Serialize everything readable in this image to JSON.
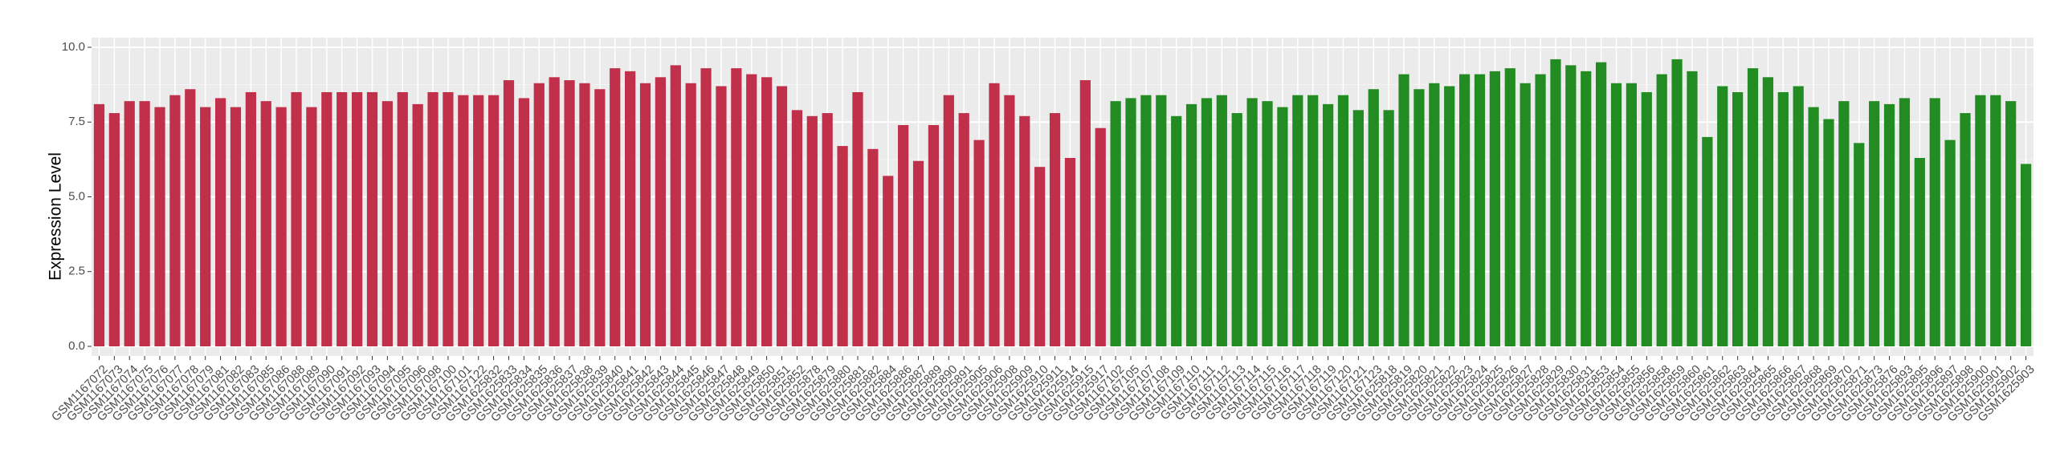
{
  "chart_data": {
    "type": "bar",
    "y_label": "Expression Level",
    "categories": [
      "GSM1167072",
      "GSM1167073",
      "GSM1167074",
      "GSM1167075",
      "GSM1167076",
      "GSM1167077",
      "GSM1167078",
      "GSM1167079",
      "GSM1167081",
      "GSM1167082",
      "GSM1167083",
      "GSM1167085",
      "GSM1167086",
      "GSM1167088",
      "GSM1167089",
      "GSM1167090",
      "GSM1167091",
      "GSM1167092",
      "GSM1167093",
      "GSM1167094",
      "GSM1167095",
      "GSM1167096",
      "GSM1167098",
      "GSM1167100",
      "GSM1167101",
      "GSM1167122",
      "GSM1625832",
      "GSM1625833",
      "GSM1625834",
      "GSM1625835",
      "GSM1625836",
      "GSM1625837",
      "GSM1625838",
      "GSM1625839",
      "GSM1625840",
      "GSM1625841",
      "GSM1625842",
      "GSM1625843",
      "GSM1625844",
      "GSM1625845",
      "GSM1625846",
      "GSM1625847",
      "GSM1625848",
      "GSM1625849",
      "GSM1625850",
      "GSM1625851",
      "GSM1625852",
      "GSM1625878",
      "GSM1625879",
      "GSM1625880",
      "GSM1625881",
      "GSM1625882",
      "GSM1625884",
      "GSM1625886",
      "GSM1625887",
      "GSM1625889",
      "GSM1625890",
      "GSM1625891",
      "GSM1625905",
      "GSM1625906",
      "GSM1625908",
      "GSM1625909",
      "GSM1625910",
      "GSM1625911",
      "GSM1625914",
      "GSM1625915",
      "GSM1625917",
      "GSM1167102",
      "GSM1167105",
      "GSM1167107",
      "GSM1167108",
      "GSM1167109",
      "GSM1167110",
      "GSM1167111",
      "GSM1167112",
      "GSM1167113",
      "GSM1167114",
      "GSM1167115",
      "GSM1167116",
      "GSM1167117",
      "GSM1167118",
      "GSM1167119",
      "GSM1167120",
      "GSM1167121",
      "GSM1167123",
      "GSM1625818",
      "GSM1625819",
      "GSM1625820",
      "GSM1625821",
      "GSM1625822",
      "GSM1625823",
      "GSM1625824",
      "GSM1625825",
      "GSM1625826",
      "GSM1625827",
      "GSM1625828",
      "GSM1625829",
      "GSM1625830",
      "GSM1625831",
      "GSM1625853",
      "GSM1625854",
      "GSM1625855",
      "GSM1625856",
      "GSM1625858",
      "GSM1625859",
      "GSM1625860",
      "GSM1625861",
      "GSM1625862",
      "GSM1625863",
      "GSM1625864",
      "GSM1625865",
      "GSM1625866",
      "GSM1625867",
      "GSM1625868",
      "GSM1625869",
      "GSM1625870",
      "GSM1625871",
      "GSM1625873",
      "GSM1625876",
      "GSM1625893",
      "GSM1625895",
      "GSM1625896",
      "GSM1625897",
      "GSM1625898",
      "GSM1625900",
      "GSM1625901",
      "GSM1625902",
      "GSM1625903"
    ],
    "values": [
      8.1,
      7.8,
      8.2,
      8.2,
      8.0,
      8.4,
      8.6,
      8.0,
      8.3,
      8.0,
      8.5,
      8.2,
      8.0,
      8.5,
      8.0,
      8.5,
      8.5,
      8.5,
      8.5,
      8.2,
      8.5,
      8.1,
      8.5,
      8.5,
      8.4,
      8.4,
      8.4,
      8.9,
      8.3,
      8.8,
      9.0,
      8.9,
      8.8,
      8.6,
      9.3,
      9.2,
      8.8,
      9.0,
      9.4,
      8.8,
      9.3,
      8.7,
      9.3,
      9.1,
      9.0,
      8.7,
      7.9,
      7.7,
      7.8,
      6.7,
      8.5,
      6.6,
      5.7,
      7.4,
      6.2,
      7.4,
      8.4,
      7.8,
      6.9,
      8.8,
      8.4,
      7.7,
      6.0,
      7.8,
      6.3,
      8.9,
      7.3,
      8.2,
      8.3,
      8.4,
      8.4,
      7.7,
      8.1,
      8.3,
      8.4,
      7.8,
      8.3,
      8.2,
      8.0,
      8.4,
      8.4,
      8.1,
      8.4,
      7.9,
      8.6,
      7.9,
      9.1,
      8.6,
      8.8,
      8.7,
      9.1,
      9.1,
      9.2,
      9.3,
      8.8,
      9.1,
      9.6,
      9.4,
      9.2,
      9.5,
      8.8,
      8.8,
      8.5,
      9.1,
      9.6,
      9.2,
      7.0,
      8.7,
      8.5,
      9.3,
      9.0,
      8.5,
      8.7,
      8.0,
      7.6,
      8.2,
      6.8,
      8.2,
      8.1,
      8.3,
      6.3,
      8.3,
      6.9,
      7.8,
      8.4,
      8.4,
      8.2,
      6.1
    ],
    "colors": [
      "#c0304a",
      "#c0304a",
      "#c0304a",
      "#c0304a",
      "#c0304a",
      "#c0304a",
      "#c0304a",
      "#c0304a",
      "#c0304a",
      "#c0304a",
      "#c0304a",
      "#c0304a",
      "#c0304a",
      "#c0304a",
      "#c0304a",
      "#c0304a",
      "#c0304a",
      "#c0304a",
      "#c0304a",
      "#c0304a",
      "#c0304a",
      "#c0304a",
      "#c0304a",
      "#c0304a",
      "#c0304a",
      "#c0304a",
      "#c0304a",
      "#c0304a",
      "#c0304a",
      "#c0304a",
      "#c0304a",
      "#c0304a",
      "#c0304a",
      "#c0304a",
      "#c0304a",
      "#c0304a",
      "#c0304a",
      "#c0304a",
      "#c0304a",
      "#c0304a",
      "#c0304a",
      "#c0304a",
      "#c0304a",
      "#c0304a",
      "#c0304a",
      "#c0304a",
      "#c0304a",
      "#c0304a",
      "#c0304a",
      "#c0304a",
      "#c0304a",
      "#c0304a",
      "#c0304a",
      "#c0304a",
      "#c0304a",
      "#c0304a",
      "#c0304a",
      "#c0304a",
      "#c0304a",
      "#c0304a",
      "#c0304a",
      "#c0304a",
      "#c0304a",
      "#c0304a",
      "#c0304a",
      "#c0304a",
      "#c0304a",
      "#228b22",
      "#228b22",
      "#228b22",
      "#228b22",
      "#228b22",
      "#228b22",
      "#228b22",
      "#228b22",
      "#228b22",
      "#228b22",
      "#228b22",
      "#228b22",
      "#228b22",
      "#228b22",
      "#228b22",
      "#228b22",
      "#228b22",
      "#228b22",
      "#228b22",
      "#228b22",
      "#228b22",
      "#228b22",
      "#228b22",
      "#228b22",
      "#228b22",
      "#228b22",
      "#228b22",
      "#228b22",
      "#228b22",
      "#228b22",
      "#228b22",
      "#228b22",
      "#228b22",
      "#228b22",
      "#228b22",
      "#228b22",
      "#228b22",
      "#228b22",
      "#228b22",
      "#228b22",
      "#228b22",
      "#228b22",
      "#228b22",
      "#228b22",
      "#228b22",
      "#228b22",
      "#228b22",
      "#228b22",
      "#228b22",
      "#228b22",
      "#228b22",
      "#228b22",
      "#228b22",
      "#228b22",
      "#228b22",
      "#228b22",
      "#228b22",
      "#228b22",
      "#228b22",
      "#228b22",
      "#228b22"
    ],
    "ylim": [
      0,
      10
    ],
    "yticks": [
      {
        "value": 0,
        "label": "0.0"
      },
      {
        "value": 2.5,
        "label": "2.5"
      },
      {
        "value": 5,
        "label": "5.0"
      },
      {
        "value": 7.5,
        "label": "7.5"
      },
      {
        "value": 10,
        "label": "10.0"
      }
    ],
    "grid": true
  }
}
